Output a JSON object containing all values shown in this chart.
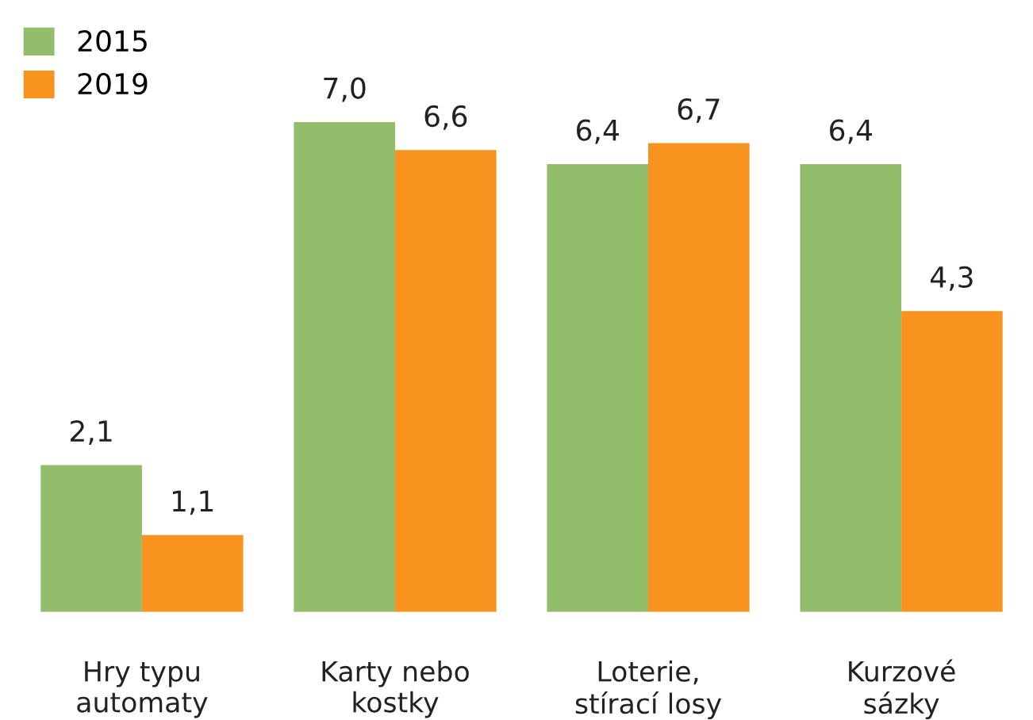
{
  "chart_data": {
    "type": "bar",
    "categories": [
      "Hry typu\nautomaty",
      "Karty nebo\nkostky",
      "Loterie,\nstírací losy",
      "Kurzové\nsázky"
    ],
    "series": [
      {
        "name": "2015",
        "color": "#92bd6a",
        "values": [
          2.1,
          7.0,
          6.4,
          6.4
        ],
        "value_labels": [
          "2,1",
          "7,0",
          "6,4",
          "6,4"
        ]
      },
      {
        "name": "2019",
        "color": "#f7931e",
        "values": [
          1.1,
          6.6,
          6.7,
          4.3
        ],
        "value_labels": [
          "1,1",
          "6,6",
          "6,7",
          "4,3"
        ]
      }
    ],
    "legend": "top left",
    "grid": false
  }
}
